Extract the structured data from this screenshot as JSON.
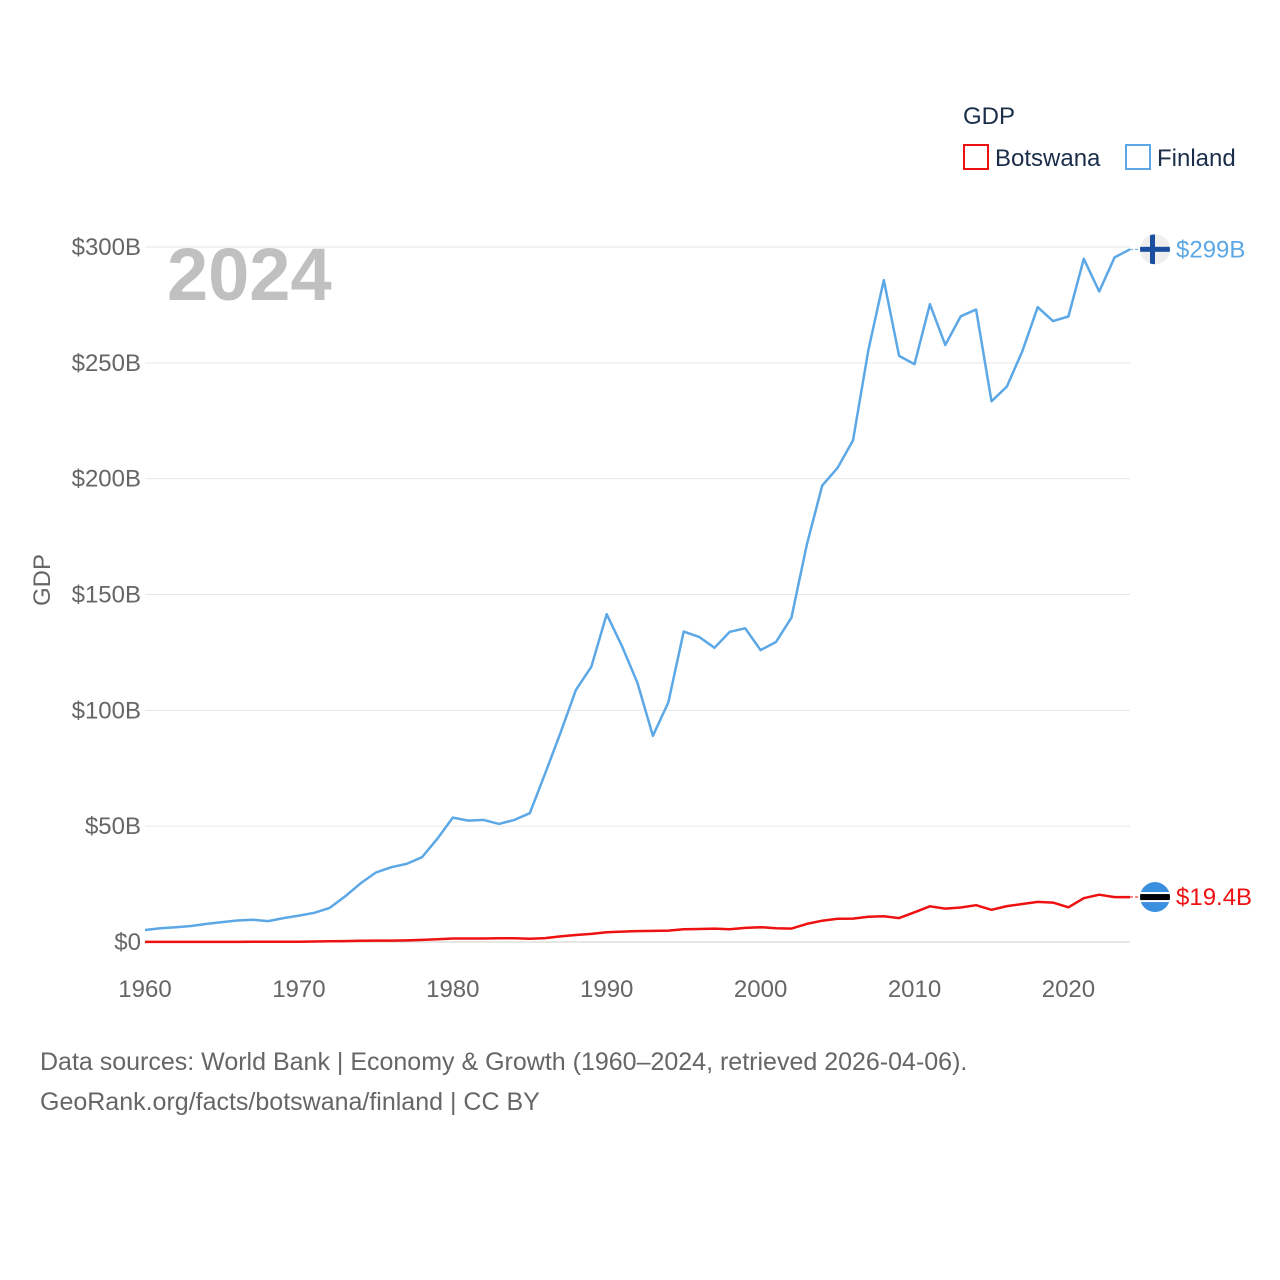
{
  "chart_data": {
    "type": "line",
    "year_label": "2024",
    "ylabel": "GDP",
    "xlabel": "",
    "legend": {
      "title": "GDP",
      "position": "top-right"
    },
    "xlim": [
      1960,
      2024
    ],
    "ylim": [
      0,
      300
    ],
    "unit": "billion USD",
    "x_ticks": [
      "1960",
      "1970",
      "1980",
      "1990",
      "2000",
      "2010",
      "2020"
    ],
    "x_tick_values": [
      1960,
      1970,
      1980,
      1990,
      2000,
      2010,
      2020
    ],
    "y_ticks": [
      "$0",
      "$50B",
      "$100B",
      "$150B",
      "$200B",
      "$250B",
      "$300B"
    ],
    "y_tick_values": [
      0,
      50,
      100,
      150,
      200,
      250,
      300
    ],
    "x": [
      1960,
      1961,
      1962,
      1963,
      1964,
      1965,
      1966,
      1967,
      1968,
      1969,
      1970,
      1971,
      1972,
      1973,
      1974,
      1975,
      1976,
      1977,
      1978,
      1979,
      1980,
      1981,
      1982,
      1983,
      1984,
      1985,
      1986,
      1987,
      1988,
      1989,
      1990,
      1991,
      1992,
      1993,
      1994,
      1995,
      1996,
      1997,
      1998,
      1999,
      2000,
      2001,
      2002,
      2003,
      2004,
      2005,
      2006,
      2007,
      2008,
      2009,
      2010,
      2011,
      2012,
      2013,
      2014,
      2015,
      2016,
      2017,
      2018,
      2019,
      2020,
      2021,
      2022,
      2023,
      2024
    ],
    "series": [
      {
        "name": "Botswana",
        "color": "#ee1111",
        "end_label": "$19.4B",
        "values": [
          0.03,
          0.03,
          0.04,
          0.04,
          0.05,
          0.05,
          0.06,
          0.07,
          0.09,
          0.12,
          0.15,
          0.2,
          0.3,
          0.4,
          0.55,
          0.6,
          0.6,
          0.7,
          0.9,
          1.2,
          1.5,
          1.5,
          1.5,
          1.6,
          1.6,
          1.4,
          1.7,
          2.4,
          3.0,
          3.5,
          4.2,
          4.5,
          4.7,
          4.8,
          4.9,
          5.5,
          5.6,
          5.8,
          5.5,
          6.1,
          6.4,
          5.9,
          5.8,
          7.8,
          9.2,
          10.0,
          10.1,
          10.9,
          11.1,
          10.3,
          12.8,
          15.4,
          14.4,
          14.9,
          15.9,
          13.9,
          15.5,
          16.4,
          17.3,
          17.0,
          15.0,
          18.9,
          20.4,
          19.4,
          19.4
        ]
      },
      {
        "name": "Finland",
        "color": "#5ca8e6",
        "end_label": "$299B",
        "values": [
          5.2,
          5.9,
          6.4,
          6.9,
          7.8,
          8.6,
          9.3,
          9.6,
          9.0,
          10.3,
          11.4,
          12.6,
          14.7,
          19.7,
          25.3,
          30.0,
          32.3,
          33.7,
          36.6,
          44.6,
          53.7,
          52.4,
          52.7,
          51.0,
          52.7,
          55.6,
          72.8,
          90.3,
          108.8,
          118.8,
          141.5,
          127.6,
          111.8,
          89.0,
          103.4,
          134.0,
          131.7,
          127.0,
          133.9,
          135.4,
          126.0,
          129.5,
          140.0,
          171.5,
          197.0,
          204.7,
          216.5,
          255.6,
          285.7,
          253.0,
          249.4,
          275.3,
          257.7,
          270.1,
          273.0,
          233.4,
          239.8,
          255.0,
          274.0,
          268.0,
          270.0,
          294.9,
          280.8,
          295.5,
          299.0
        ]
      }
    ]
  },
  "footer": {
    "line1": "Data sources: World Bank | Economy & Growth (1960–2024, retrieved 2026-04-06).",
    "line2": "GeoRank.org/facts/botswana/finland | CC BY"
  },
  "flags": {
    "botswana": {
      "name": "botswana-flag-icon",
      "blue": "#3a8fde",
      "black": "#000000",
      "white": "#ffffff"
    },
    "finland": {
      "name": "finland-flag-icon",
      "blue": "#1a4fa0",
      "white": "#ffffff"
    }
  }
}
